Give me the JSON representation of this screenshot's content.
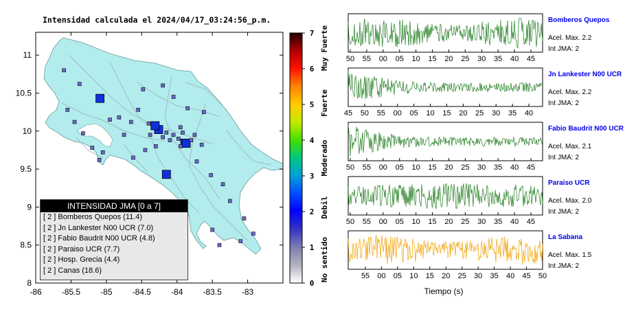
{
  "map": {
    "title": "Intensidad calculada el 2024/04/17_03:24:56_p.m.",
    "x_ticks": [
      "-86",
      "-85.5",
      "-85",
      "-84.5",
      "-84",
      "-83.5",
      "-83"
    ],
    "y_ticks": [
      "11",
      "10.5",
      "10",
      "9.5",
      "9",
      "8.5",
      "8"
    ]
  },
  "colorbar": {
    "ticks": [
      "0",
      "1",
      "2",
      "3",
      "4",
      "5",
      "6",
      "7"
    ],
    "labels": [
      "No sentido",
      "Debil",
      "Moderado",
      "Fuerte",
      "Muy Fuerte"
    ]
  },
  "legend": {
    "title": "INTENSIDAD JMA [0 a 7]",
    "rows": [
      "[ 2 ] Bomberos Quepos (11.4)",
      "[ 2 ] Jn Lankester N00 UCR (7.0)",
      "[ 2 ] Fabio Baudrit N00 UCR (4.8)",
      "[ 2 ] Paraiso UCR (7.7)",
      "[ 2 ] Hosp. Grecia (4.4)",
      "[ 2 ] Canas (18.6)"
    ]
  },
  "stations": [
    {
      "name": "Bomberos Quepos",
      "accel": "Acel. Max. 2.2",
      "jma": "Int JMA: 2",
      "color": "#1a7a1a",
      "ticks": [
        "50",
        "55",
        "00",
        "05",
        "10",
        "15",
        "20",
        "25",
        "30",
        "35",
        "40",
        "45"
      ]
    },
    {
      "name": "Jn Lankester N00 UCR",
      "accel": "Acel. Max. 2.2",
      "jma": "Int JMA: 2",
      "color": "#1a7a1a",
      "ticks": [
        "45",
        "50",
        "55",
        "00",
        "05",
        "10",
        "15",
        "20",
        "25",
        "30",
        "35",
        "40"
      ]
    },
    {
      "name": "Fabio Baudrit N00 UCR",
      "accel": "Acel. Max. 2.1",
      "jma": "Int JMA: 2",
      "color": "#1a7a1a",
      "ticks": [
        "50",
        "55",
        "00",
        "05",
        "10",
        "15",
        "20",
        "25",
        "30",
        "35",
        "40",
        "45"
      ]
    },
    {
      "name": "Paraiso UCR",
      "accel": "Acel. Max. 2.0",
      "jma": "Int JMA: 2",
      "color": "#1a7a1a",
      "ticks": [
        "50",
        "55",
        "00",
        "05",
        "10",
        "15",
        "20",
        "25",
        "30",
        "35",
        "40",
        "45"
      ]
    },
    {
      "name": "La Sabana",
      "accel": "Acel. Max. 1.5",
      "jma": "Int JMA: 2",
      "color": "#f0a000",
      "ticks": [
        "55",
        "00",
        "05",
        "10",
        "15",
        "20",
        "25",
        "30",
        "35",
        "40",
        "45",
        "50"
      ]
    }
  ],
  "xlabel": "Tiempo (s)",
  "colors": {
    "land": "#b2ecec",
    "green": "#1a7a1a",
    "orange": "#f0a000",
    "marker_jma2": "#6a6ad0"
  },
  "chart_data": [
    {
      "type": "scatter",
      "title": "Intensidad calculada el 2024/04/17_03:24:56_p.m.",
      "xlim": [
        -86,
        -82.5
      ],
      "ylim": [
        8,
        11.3
      ],
      "legend": "bottom-left",
      "series": [
        {
          "name": "Bomberos Quepos",
          "x": [
            -84.15
          ],
          "y": [
            9.43
          ],
          "value": 2
        },
        {
          "name": "Jn Lankester N00 UCR",
          "x": [
            -83.89
          ],
          "y": [
            9.84
          ],
          "value": 2
        },
        {
          "name": "Fabio Baudrit N00 UCR",
          "x": [
            -84.26
          ],
          "y": [
            10.02
          ],
          "value": 2
        },
        {
          "name": "Paraiso UCR",
          "x": [
            -83.87
          ],
          "y": [
            9.84
          ],
          "value": 2
        },
        {
          "name": "Hosp. Grecia",
          "x": [
            -84.31
          ],
          "y": [
            10.07
          ],
          "value": 2
        },
        {
          "name": "Canas",
          "x": [
            -85.09
          ],
          "y": [
            10.43
          ],
          "value": 2
        }
      ]
    },
    {
      "type": "line",
      "xlabel": "Tiempo (s)",
      "series": [
        {
          "name": "Bomberos Quepos"
        },
        {
          "name": "Jn Lankester N00 UCR"
        },
        {
          "name": "Fabio Baudrit N00 UCR"
        },
        {
          "name": "Paraiso UCR"
        },
        {
          "name": "La Sabana"
        }
      ]
    }
  ]
}
